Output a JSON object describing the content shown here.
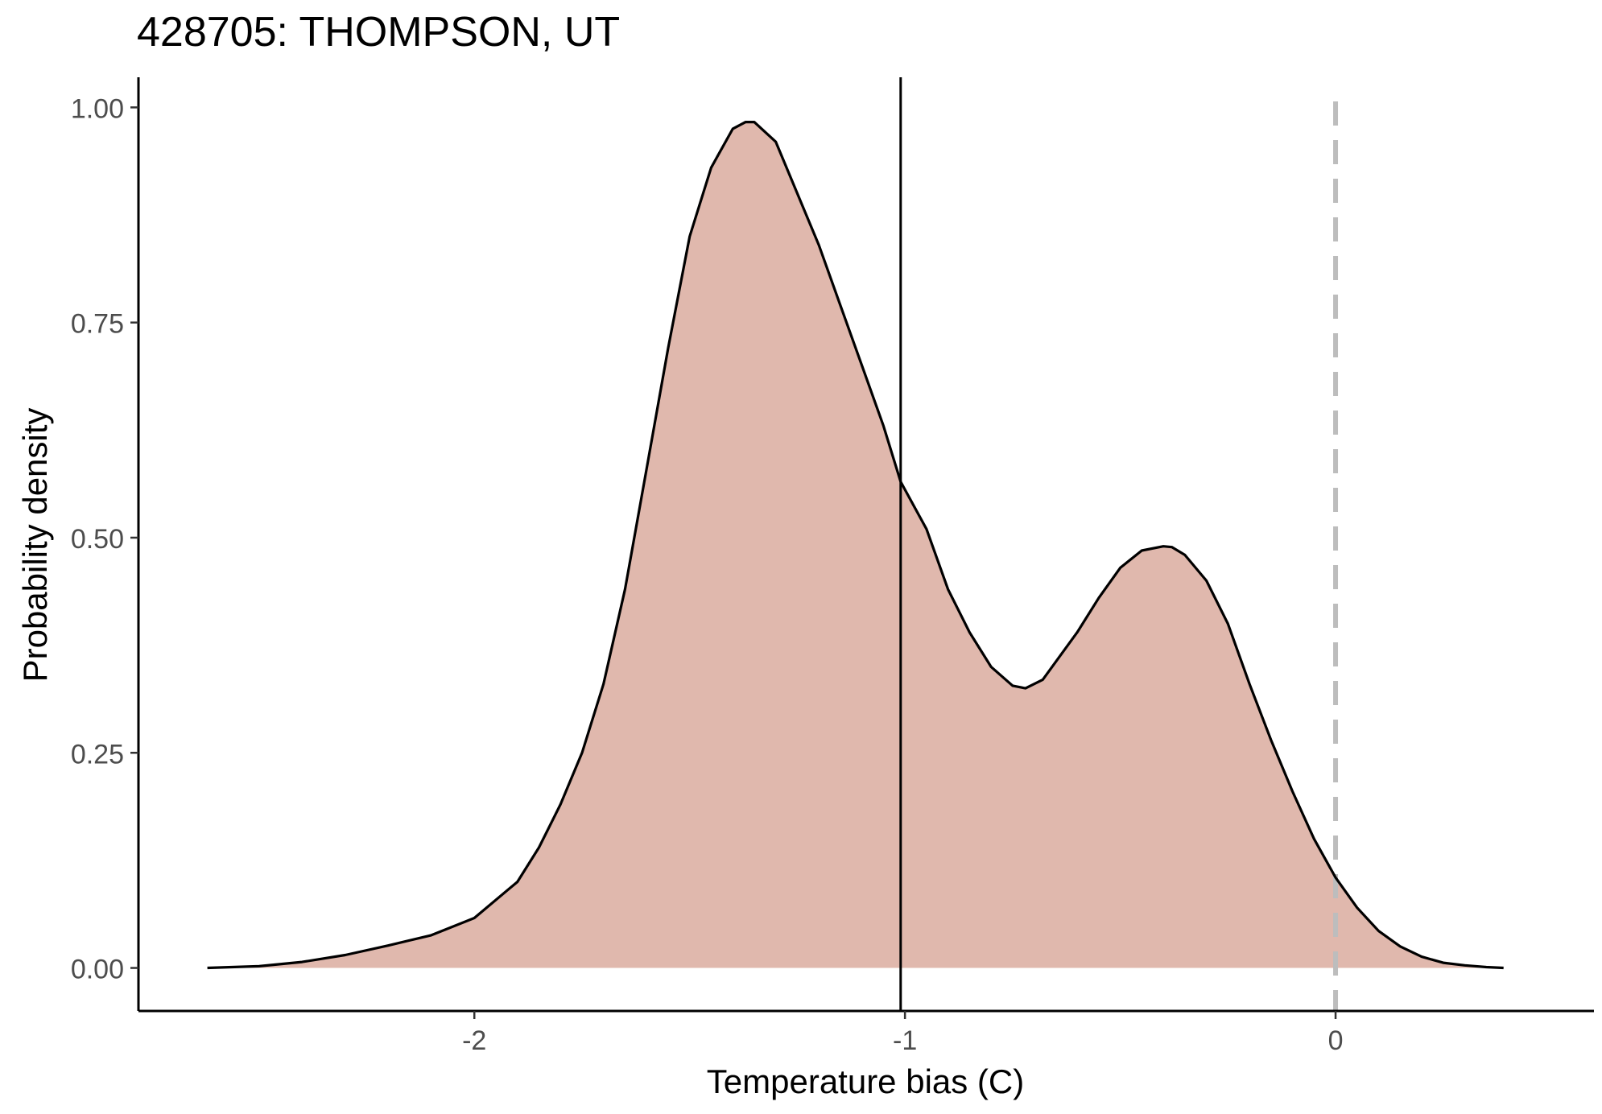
{
  "chart_data": {
    "type": "area",
    "title": "428705: THOMPSON, UT",
    "xlabel": "Temperature bias (C)",
    "ylabel": "Probability density",
    "xlim": [
      -2.78,
      0.6
    ],
    "ylim": [
      -0.05,
      1.035
    ],
    "x_ticks": [
      -2,
      -1,
      0
    ],
    "x_tick_labels": [
      "-2",
      "-1",
      "0"
    ],
    "y_ticks": [
      0,
      0.25,
      0.5,
      0.75,
      1.0
    ],
    "y_tick_labels": [
      "0.00",
      "0.25",
      "0.50",
      "0.75",
      "1.00"
    ],
    "grid": false,
    "legend": "none",
    "fill_color": "#e0b8ad",
    "line_color": "#000000",
    "reference_lines": [
      {
        "x": -1.01,
        "style": "solid",
        "color": "#000000"
      },
      {
        "x": 0.0,
        "style": "dashed",
        "color": "#bdbdbd"
      }
    ],
    "series": [
      {
        "x": [
          -2.62,
          -2.5,
          -2.4,
          -2.3,
          -2.2,
          -2.1,
          -2.0,
          -1.9,
          -1.85,
          -1.8,
          -1.75,
          -1.7,
          -1.65,
          -1.6,
          -1.55,
          -1.5,
          -1.45,
          -1.4,
          -1.37,
          -1.35,
          -1.3,
          -1.25,
          -1.2,
          -1.15,
          -1.1,
          -1.05,
          -1.01,
          -0.95,
          -0.9,
          -0.85,
          -0.8,
          -0.75,
          -0.72,
          -0.68,
          -0.6,
          -0.55,
          -0.5,
          -0.45,
          -0.4,
          -0.38,
          -0.35,
          -0.3,
          -0.25,
          -0.2,
          -0.15,
          -0.1,
          -0.05,
          0.0,
          0.05,
          0.1,
          0.15,
          0.2,
          0.25,
          0.3,
          0.35,
          0.39
        ],
        "y": [
          0.0,
          0.002,
          0.007,
          0.015,
          0.026,
          0.038,
          0.058,
          0.1,
          0.14,
          0.19,
          0.25,
          0.33,
          0.44,
          0.58,
          0.72,
          0.85,
          0.93,
          0.975,
          0.983,
          0.983,
          0.96,
          0.9,
          0.84,
          0.77,
          0.7,
          0.63,
          0.565,
          0.51,
          0.44,
          0.39,
          0.35,
          0.328,
          0.325,
          0.335,
          0.39,
          0.43,
          0.465,
          0.485,
          0.49,
          0.489,
          0.48,
          0.45,
          0.4,
          0.33,
          0.265,
          0.205,
          0.15,
          0.105,
          0.07,
          0.043,
          0.025,
          0.013,
          0.006,
          0.003,
          0.001,
          0.0
        ]
      }
    ]
  }
}
